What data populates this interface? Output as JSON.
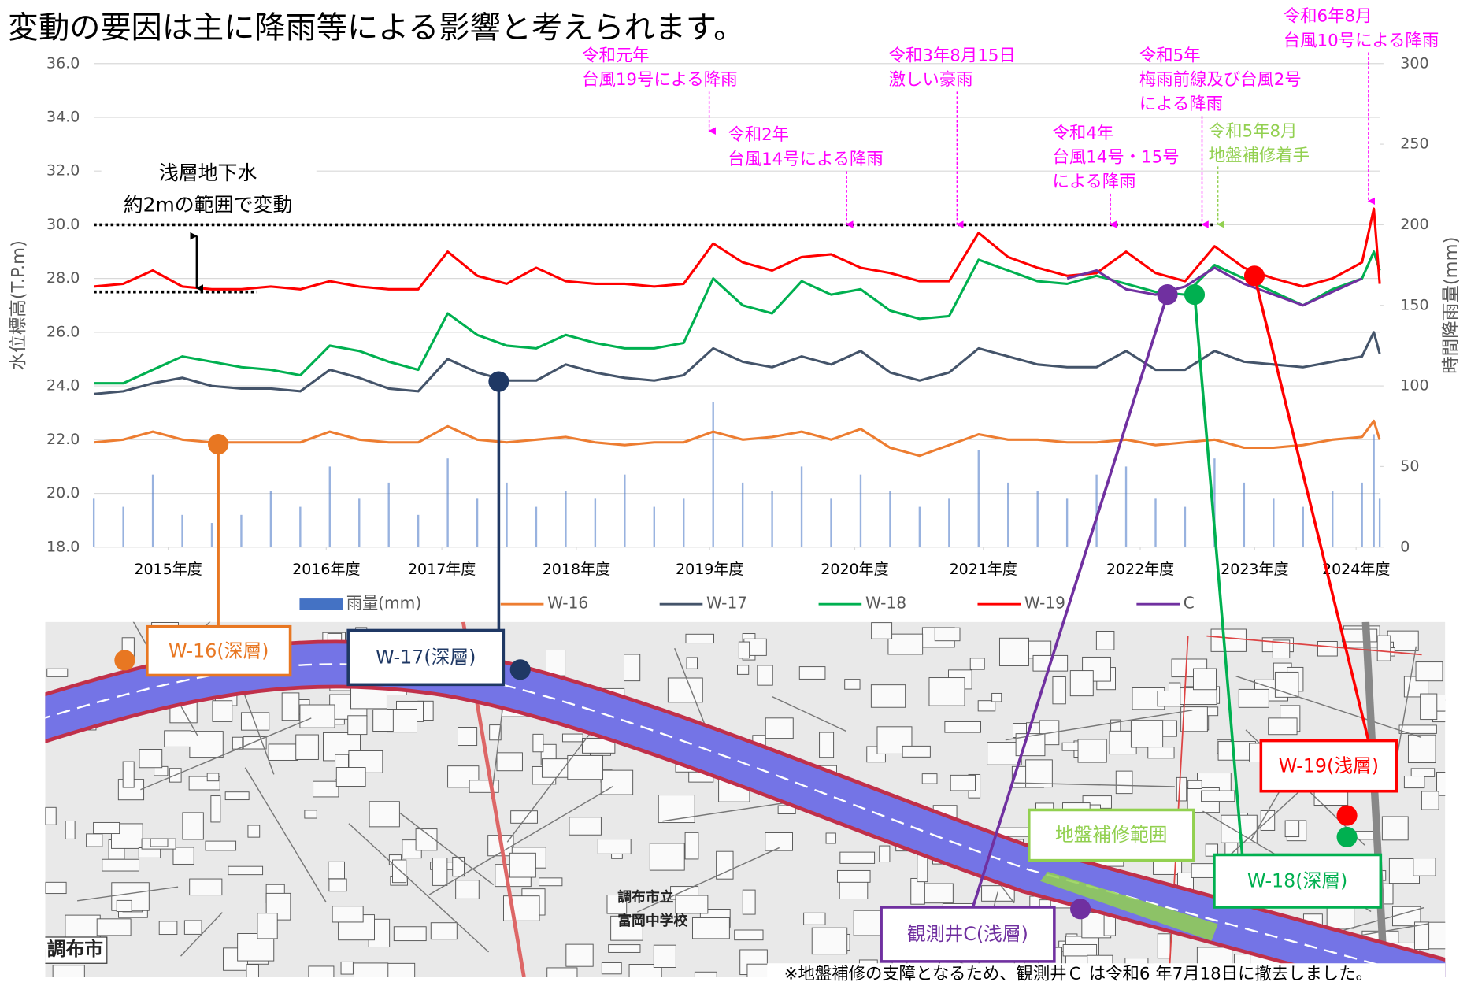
{
  "chart_data": {
    "type": "line",
    "title": "変動の要因は主に降雨等による影響と考えられます。",
    "y_label": "水位標高(T.P.m)",
    "y2_label": "時間降雨量(mm)",
    "range_note": [
      "浅層地下水",
      "約2mの範囲で変動"
    ],
    "range_band": [
      27.5,
      30.0
    ],
    "grid": true,
    "xlim": [
      2014.0,
      2024.9
    ],
    "ylim": [
      18,
      36
    ],
    "y2lim": [
      0,
      300
    ],
    "yticks": [
      {
        "value": 18,
        "label": "18.0"
      },
      {
        "value": 20,
        "label": "20.0"
      },
      {
        "value": 22,
        "label": "22.0"
      },
      {
        "value": 24,
        "label": "24.0"
      },
      {
        "value": 26,
        "label": "26.0"
      },
      {
        "value": 28,
        "label": "28.0"
      },
      {
        "value": 30,
        "label": "30.0"
      },
      {
        "value": 32,
        "label": "32.0"
      },
      {
        "value": 34,
        "label": "34.0"
      },
      {
        "value": 36,
        "label": "36.0"
      }
    ],
    "y2ticks": [
      0,
      50,
      100,
      150,
      200,
      250,
      300
    ],
    "xticks": [
      {
        "value": 2014.63,
        "label": "2015年度"
      },
      {
        "value": 2015.97,
        "label": "2016年度"
      },
      {
        "value": 2016.95,
        "label": "2017年度"
      },
      {
        "value": 2018.09,
        "label": "2018年度"
      },
      {
        "value": 2019.22,
        "label": "2019年度"
      },
      {
        "value": 2020.45,
        "label": "2020年度"
      },
      {
        "value": 2021.54,
        "label": "2021年度"
      },
      {
        "value": 2022.87,
        "label": "2022年度"
      },
      {
        "value": 2023.84,
        "label": "2023年度"
      },
      {
        "value": 2024.7,
        "label": "2024年度"
      }
    ],
    "x": [
      2014.0,
      2014.25,
      2014.5,
      2014.75,
      2015.0,
      2015.25,
      2015.5,
      2015.75,
      2016.0,
      2016.25,
      2016.5,
      2016.75,
      2017.0,
      2017.25,
      2017.5,
      2017.75,
      2018.0,
      2018.25,
      2018.5,
      2018.75,
      2019.0,
      2019.25,
      2019.5,
      2019.75,
      2020.0,
      2020.25,
      2020.5,
      2020.75,
      2021.0,
      2021.25,
      2021.5,
      2021.75,
      2022.0,
      2022.25,
      2022.5,
      2022.75,
      2023.0,
      2023.25,
      2023.5,
      2023.75,
      2024.0,
      2024.25,
      2024.5,
      2024.75,
      2024.85,
      2024.9
    ],
    "series": [
      {
        "name": "雨量(mm)",
        "type": "bar",
        "axis": "y2",
        "color": "#4472c4",
        "values": [
          30,
          25,
          45,
          20,
          15,
          20,
          35,
          25,
          50,
          30,
          40,
          20,
          55,
          30,
          40,
          25,
          35,
          30,
          45,
          25,
          30,
          90,
          40,
          35,
          50,
          30,
          45,
          35,
          25,
          30,
          60,
          40,
          35,
          30,
          45,
          50,
          30,
          25,
          55,
          40,
          30,
          25,
          35,
          40,
          70,
          30
        ]
      },
      {
        "name": "W-16",
        "color": "#ed7d31",
        "values": [
          21.9,
          22.0,
          22.3,
          22.0,
          21.9,
          21.9,
          21.9,
          21.9,
          22.3,
          22.0,
          21.9,
          21.9,
          22.5,
          22.0,
          21.9,
          22.0,
          22.1,
          21.9,
          21.8,
          21.9,
          21.9,
          22.3,
          22.0,
          22.1,
          22.3,
          22.0,
          22.4,
          21.7,
          21.4,
          21.8,
          22.2,
          22.0,
          22.0,
          21.9,
          21.9,
          22.0,
          21.8,
          21.9,
          22.0,
          21.7,
          21.7,
          21.8,
          22.0,
          22.1,
          22.7,
          22.0
        ]
      },
      {
        "name": "W-17",
        "color": "#44546a",
        "values": [
          23.7,
          23.8,
          24.1,
          24.3,
          24.0,
          23.9,
          23.9,
          23.8,
          24.6,
          24.3,
          23.9,
          23.8,
          25.0,
          24.5,
          24.2,
          24.2,
          24.8,
          24.5,
          24.3,
          24.2,
          24.4,
          25.4,
          24.9,
          24.7,
          25.1,
          24.8,
          25.3,
          24.5,
          24.2,
          24.5,
          25.4,
          25.1,
          24.8,
          24.7,
          24.7,
          25.3,
          24.6,
          24.6,
          25.3,
          24.9,
          24.8,
          24.7,
          24.9,
          25.1,
          26.0,
          25.2
        ]
      },
      {
        "name": "W-18",
        "color": "#00b050",
        "values": [
          24.1,
          24.1,
          24.6,
          25.1,
          24.9,
          24.7,
          24.6,
          24.4,
          25.5,
          25.3,
          24.9,
          24.6,
          26.7,
          25.9,
          25.5,
          25.4,
          25.9,
          25.6,
          25.4,
          25.4,
          25.6,
          28.0,
          27.0,
          26.7,
          27.9,
          27.4,
          27.6,
          26.8,
          26.5,
          26.6,
          28.7,
          28.3,
          27.9,
          27.8,
          28.1,
          27.8,
          27.5,
          27.4,
          28.5,
          28.0,
          27.5,
          27.0,
          27.6,
          28.0,
          29.0,
          28.3
        ]
      },
      {
        "name": "W-19",
        "color": "#ff0000",
        "values": [
          27.7,
          27.8,
          28.3,
          27.7,
          27.6,
          27.6,
          27.7,
          27.6,
          27.9,
          27.7,
          27.6,
          27.6,
          29.0,
          28.1,
          27.8,
          28.4,
          27.9,
          27.8,
          27.8,
          27.7,
          27.8,
          29.3,
          28.6,
          28.3,
          28.8,
          28.9,
          28.4,
          28.2,
          27.9,
          27.9,
          29.7,
          28.8,
          28.4,
          28.1,
          28.2,
          29.0,
          28.2,
          27.9,
          29.2,
          28.4,
          28.0,
          27.7,
          28.0,
          28.6,
          30.6,
          27.8
        ]
      },
      {
        "name": "C",
        "color": "#7030a0",
        "values": [
          null,
          null,
          null,
          null,
          null,
          null,
          null,
          null,
          null,
          null,
          null,
          null,
          null,
          null,
          null,
          null,
          null,
          null,
          null,
          null,
          null,
          null,
          null,
          null,
          null,
          null,
          null,
          null,
          null,
          null,
          null,
          null,
          null,
          28.0,
          28.3,
          27.6,
          27.4,
          27.7,
          28.4,
          27.8,
          27.4,
          27.0,
          27.5,
          28.0,
          null,
          null
        ]
      }
    ],
    "annotations": [
      {
        "lines": [
          "令和元年",
          "台風19号による降雨"
        ],
        "color": "#ff00ff"
      },
      {
        "lines": [
          "令和2年",
          "台風14号による降雨"
        ],
        "color": "#ff00ff"
      },
      {
        "lines": [
          "令和3年8月15日",
          "激しい豪雨"
        ],
        "color": "#ff00ff"
      },
      {
        "lines": [
          "令和4年",
          "台風14号・15号",
          "による降雨"
        ],
        "color": "#ff00ff"
      },
      {
        "lines": [
          "令和5年",
          "梅雨前線及び台風2号",
          "による降雨"
        ],
        "color": "#ff00ff"
      },
      {
        "lines": [
          "令和5年8月",
          "地盤補修着手"
        ],
        "color": "#92d050"
      },
      {
        "lines": [
          "令和6年8月",
          "台風10号による降雨"
        ],
        "color": "#ff00ff"
      }
    ]
  },
  "map": {
    "labels": [
      "W-16(深層)",
      "W-17(深層)",
      "W-19(浅層)",
      "地盤補修範囲",
      "W-18(深層)",
      "観測井C(浅層)"
    ],
    "place_names": [
      "調布市",
      "調布市立",
      "富岡中学校"
    ],
    "note": "※地盤補修の支障となるため、観測井Ｃ は令和6 年7月18日に撤去しました。"
  }
}
